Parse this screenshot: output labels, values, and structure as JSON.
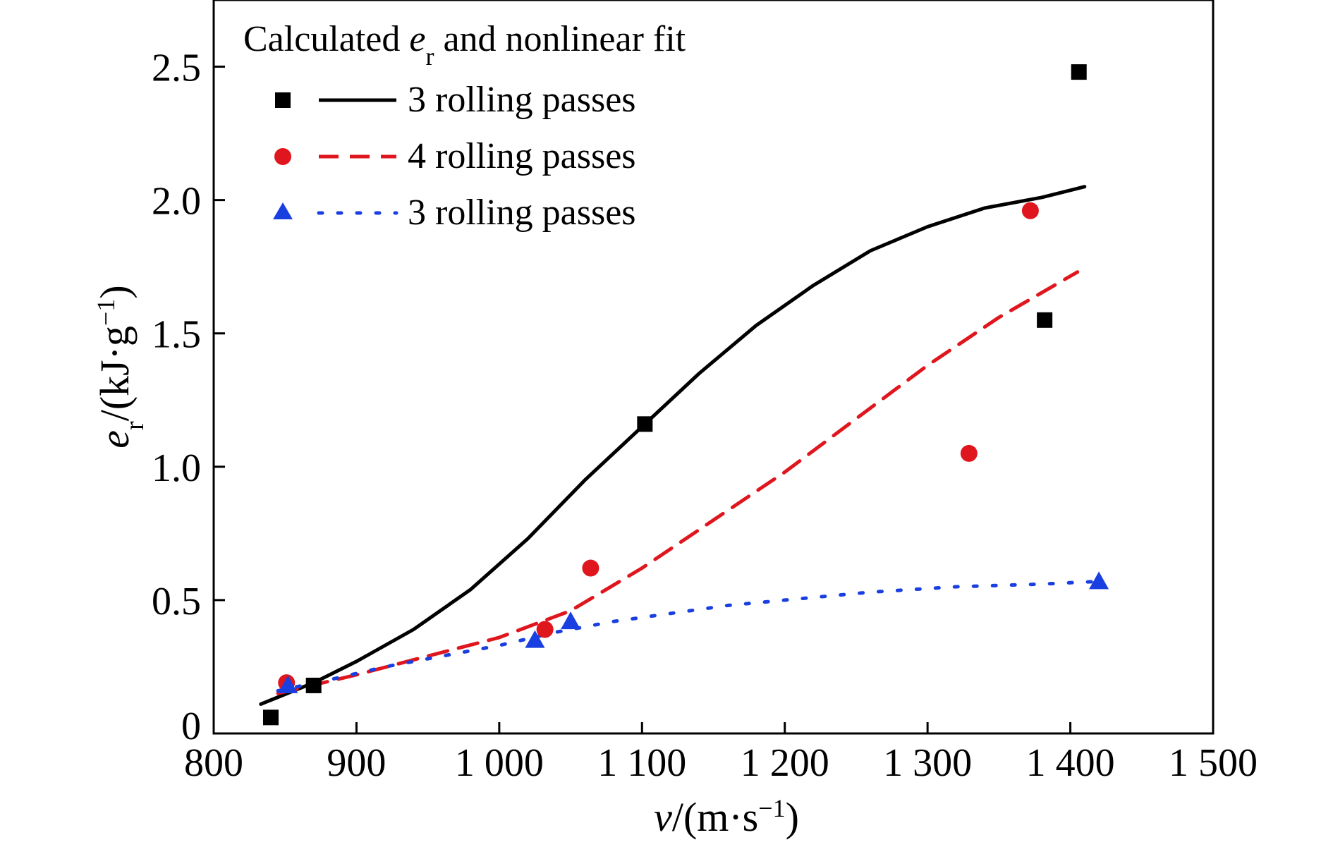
{
  "chart_data": {
    "type": "scatter",
    "title": "",
    "legend_title": {
      "prefix": "Calculated ",
      "symbol": "e",
      "subscript": "r",
      "suffix": " and nonlinear fit"
    },
    "legend_placement": "top-left",
    "grid": false,
    "xlabel": {
      "symbol": "v",
      "unit": "/(m·s",
      "sup": "−1",
      "close": ")"
    },
    "ylabel": {
      "symbol": "e",
      "subscript": "r",
      "unit": "/(kJ·g",
      "sup": "−1",
      "close": ")"
    },
    "xlim": [
      800,
      1500
    ],
    "ylim": [
      0,
      2.75
    ],
    "xticks": [
      {
        "value": 800,
        "label": "800"
      },
      {
        "value": 900,
        "label": "900"
      },
      {
        "value": 1000,
        "label": "1 000"
      },
      {
        "value": 1100,
        "label": "1 100"
      },
      {
        "value": 1200,
        "label": "1 200"
      },
      {
        "value": 1300,
        "label": "1 300"
      },
      {
        "value": 1400,
        "label": "1 400"
      },
      {
        "value": 1500,
        "label": "1 500"
      }
    ],
    "yticks": [
      {
        "value": 0,
        "label": "0"
      },
      {
        "value": 0.5,
        "label": "0.5"
      },
      {
        "value": 1.0,
        "label": "1.0"
      },
      {
        "value": 1.5,
        "label": "1.5"
      },
      {
        "value": 2.0,
        "label": "2.0"
      },
      {
        "value": 2.5,
        "label": "2.5"
      }
    ],
    "series": [
      {
        "name": "3 rolling passes",
        "marker": "square",
        "line": "solid",
        "color": "#000000",
        "points": [
          [
            840,
            0.06
          ],
          [
            870,
            0.18
          ],
          [
            1102,
            1.16
          ],
          [
            1382,
            1.55
          ],
          [
            1406,
            2.48
          ]
        ],
        "fit": [
          [
            833,
            0.11
          ],
          [
            870,
            0.19
          ],
          [
            900,
            0.27
          ],
          [
            940,
            0.39
          ],
          [
            980,
            0.54
          ],
          [
            1020,
            0.73
          ],
          [
            1060,
            0.95
          ],
          [
            1100,
            1.15
          ],
          [
            1140,
            1.35
          ],
          [
            1180,
            1.53
          ],
          [
            1220,
            1.68
          ],
          [
            1260,
            1.81
          ],
          [
            1300,
            1.9
          ],
          [
            1340,
            1.97
          ],
          [
            1380,
            2.01
          ],
          [
            1410,
            2.05
          ]
        ]
      },
      {
        "name": "4 rolling passes",
        "marker": "circle",
        "line": "dashed",
        "color": "#e0161e",
        "points": [
          [
            851,
            0.19
          ],
          [
            1032,
            0.39
          ],
          [
            1064,
            0.62
          ],
          [
            1329,
            1.05
          ],
          [
            1372,
            1.96
          ]
        ],
        "fit": [
          [
            845,
            0.15
          ],
          [
            900,
            0.22
          ],
          [
            950,
            0.29
          ],
          [
            1000,
            0.36
          ],
          [
            1050,
            0.46
          ],
          [
            1100,
            0.62
          ],
          [
            1150,
            0.8
          ],
          [
            1200,
            0.98
          ],
          [
            1250,
            1.18
          ],
          [
            1300,
            1.38
          ],
          [
            1350,
            1.56
          ],
          [
            1405,
            1.73
          ]
        ]
      },
      {
        "name": "3 rolling passes",
        "marker": "triangle",
        "line": "dotted",
        "color": "#1a3fe0",
        "points": [
          [
            852,
            0.18
          ],
          [
            1025,
            0.35
          ],
          [
            1050,
            0.42
          ],
          [
            1420,
            0.57
          ]
        ],
        "fit": [
          [
            845,
            0.16
          ],
          [
            880,
            0.2
          ],
          [
            920,
            0.25
          ],
          [
            960,
            0.29
          ],
          [
            1000,
            0.33
          ],
          [
            1040,
            0.38
          ],
          [
            1080,
            0.42
          ],
          [
            1120,
            0.45
          ],
          [
            1160,
            0.48
          ],
          [
            1200,
            0.5
          ],
          [
            1260,
            0.53
          ],
          [
            1320,
            0.55
          ],
          [
            1380,
            0.56
          ],
          [
            1420,
            0.57
          ]
        ]
      }
    ]
  }
}
